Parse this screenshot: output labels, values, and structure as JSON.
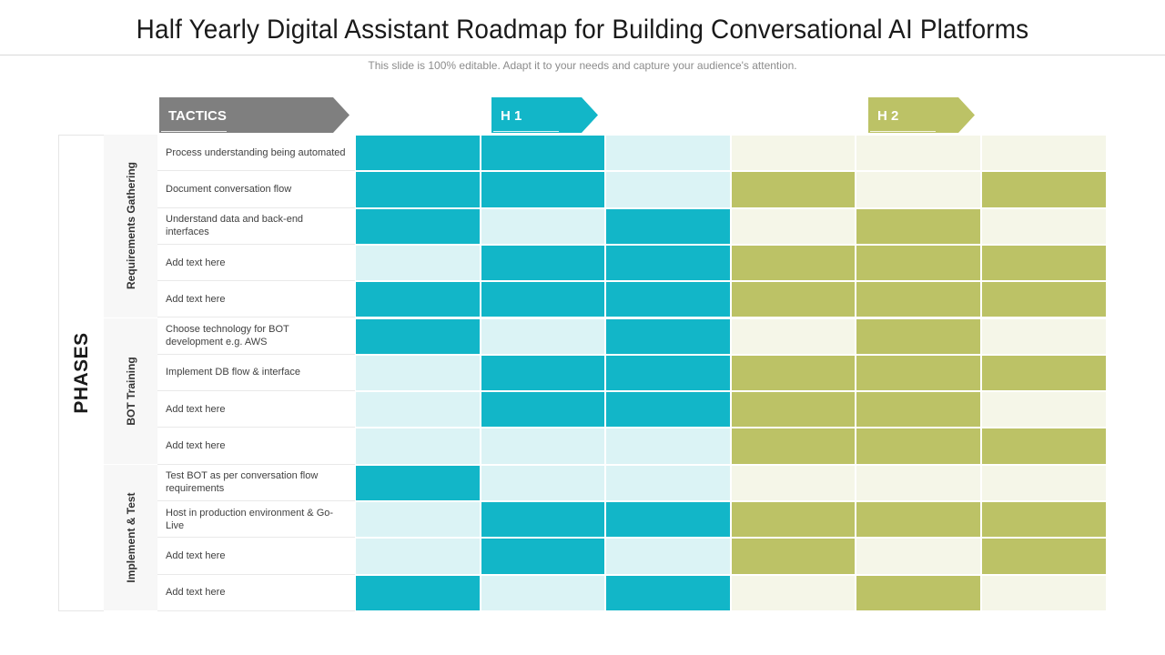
{
  "slide": {
    "title": "Half Yearly Digital Assistant Roadmap for Building Conversational AI Platforms",
    "subtitle": "This slide is 100% editable. Adapt it to your needs and capture your audience's attention."
  },
  "headers": {
    "tactics": "TACTICS",
    "h1": "H 1",
    "h2": "H 2"
  },
  "phases_label": "PHASES",
  "phases": [
    {
      "label": "Requirements Gathering",
      "rows": 5
    },
    {
      "label": "BOT Training",
      "rows": 4
    },
    {
      "label": "Implement & Test",
      "rows": 4
    }
  ],
  "colors": {
    "h1_dark": "#12b6c8",
    "h1_light": "#dbf3f5",
    "h2_dark": "#bcc266",
    "h2_light": "#f5f6e8",
    "tactics": "#7f7f7f"
  },
  "tactics": [
    {
      "label": "Process understanding being automated",
      "fill": [
        1,
        1,
        0,
        0,
        0,
        0
      ]
    },
    {
      "label": "Document conversation flow",
      "fill": [
        1,
        1,
        0,
        1,
        0,
        1
      ]
    },
    {
      "label": "Understand data and back-end interfaces",
      "fill": [
        1,
        0,
        1,
        0,
        1,
        0
      ]
    },
    {
      "label": "Add text here",
      "fill": [
        0,
        1,
        1,
        1,
        1,
        1
      ]
    },
    {
      "label": "Add text here",
      "fill": [
        1,
        1,
        1,
        1,
        1,
        1
      ]
    },
    {
      "label": "Choose technology for BOT development e.g. AWS",
      "fill": [
        1,
        0,
        1,
        0,
        1,
        0
      ]
    },
    {
      "label": "Implement DB flow  & interface",
      "fill": [
        0,
        1,
        1,
        1,
        1,
        1
      ]
    },
    {
      "label": "Add text here",
      "fill": [
        0,
        1,
        1,
        1,
        1,
        0
      ]
    },
    {
      "label": "Add text here",
      "fill": [
        0,
        0,
        0,
        1,
        1,
        1
      ]
    },
    {
      "label": "Test BOT as per conversation flow requirements",
      "fill": [
        1,
        0,
        0,
        0,
        0,
        0
      ]
    },
    {
      "label": "Host in production environment & Go-Live",
      "fill": [
        0,
        1,
        1,
        1,
        1,
        1
      ]
    },
    {
      "label": "Add text here",
      "fill": [
        0,
        1,
        0,
        1,
        0,
        1
      ]
    },
    {
      "label": "Add text here",
      "fill": [
        1,
        0,
        1,
        0,
        1,
        0
      ]
    }
  ]
}
